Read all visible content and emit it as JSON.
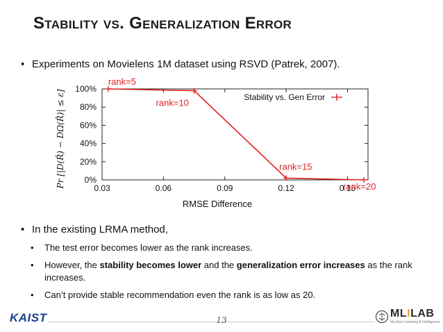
{
  "slide": {
    "title": "Stability vs. Generalization Error",
    "intro_bullet": "Experiments on Movielens 1M dataset using RSVD (Patrek, 2007).",
    "lrma_bullet": "In the existing LRMA method,",
    "sub_bullets": [
      {
        "before": "The test error becomes lower as the rank increases.",
        "bold1": "",
        "middle": "",
        "bold2": "",
        "after": ""
      },
      {
        "before": "However, the ",
        "bold1": "stability becomes lower",
        "middle": " and the ",
        "bold2": "generalization error increases",
        "after": " as the rank increases."
      },
      {
        "before": "Can’t provide stable recommendation even the rank is as low as 20.",
        "bold1": "",
        "middle": "",
        "bold2": "",
        "after": ""
      }
    ],
    "page_number": "13",
    "logo_left": "KAIST",
    "logo_right": {
      "brand_a": "ML",
      "brand_b": "I",
      "brand_c": "LAB",
      "tagline": "Machine Learning & Intelligence"
    }
  },
  "chart_data": {
    "type": "line",
    "series": [
      {
        "name": "Stability vs. Gen Error",
        "color": "#e02020",
        "x": [
          0.033,
          0.075,
          0.12,
          0.158
        ],
        "y": [
          100,
          98,
          2,
          0
        ]
      }
    ],
    "point_labels": [
      "rank=5",
      "rank=10",
      "rank=15",
      "rank=20"
    ],
    "xlabel": "RMSE Difference",
    "ylabel": "Pr [|D(R̂) − DΩ(R̂)| ≤ ε]",
    "xlim": [
      0.03,
      0.16
    ],
    "ylim": [
      0,
      100
    ],
    "x_ticks": [
      0.03,
      0.06,
      0.09,
      0.12,
      0.15
    ],
    "x_tick_labels": [
      "0.03",
      "0.06",
      "0.09",
      "0.12",
      "0.15"
    ],
    "y_ticks": [
      0,
      20,
      40,
      60,
      80,
      100
    ],
    "y_tick_labels": [
      "0%",
      "20%",
      "40%",
      "60%",
      "80%",
      "100%"
    ],
    "legend_position": "top-right",
    "grid": false
  }
}
